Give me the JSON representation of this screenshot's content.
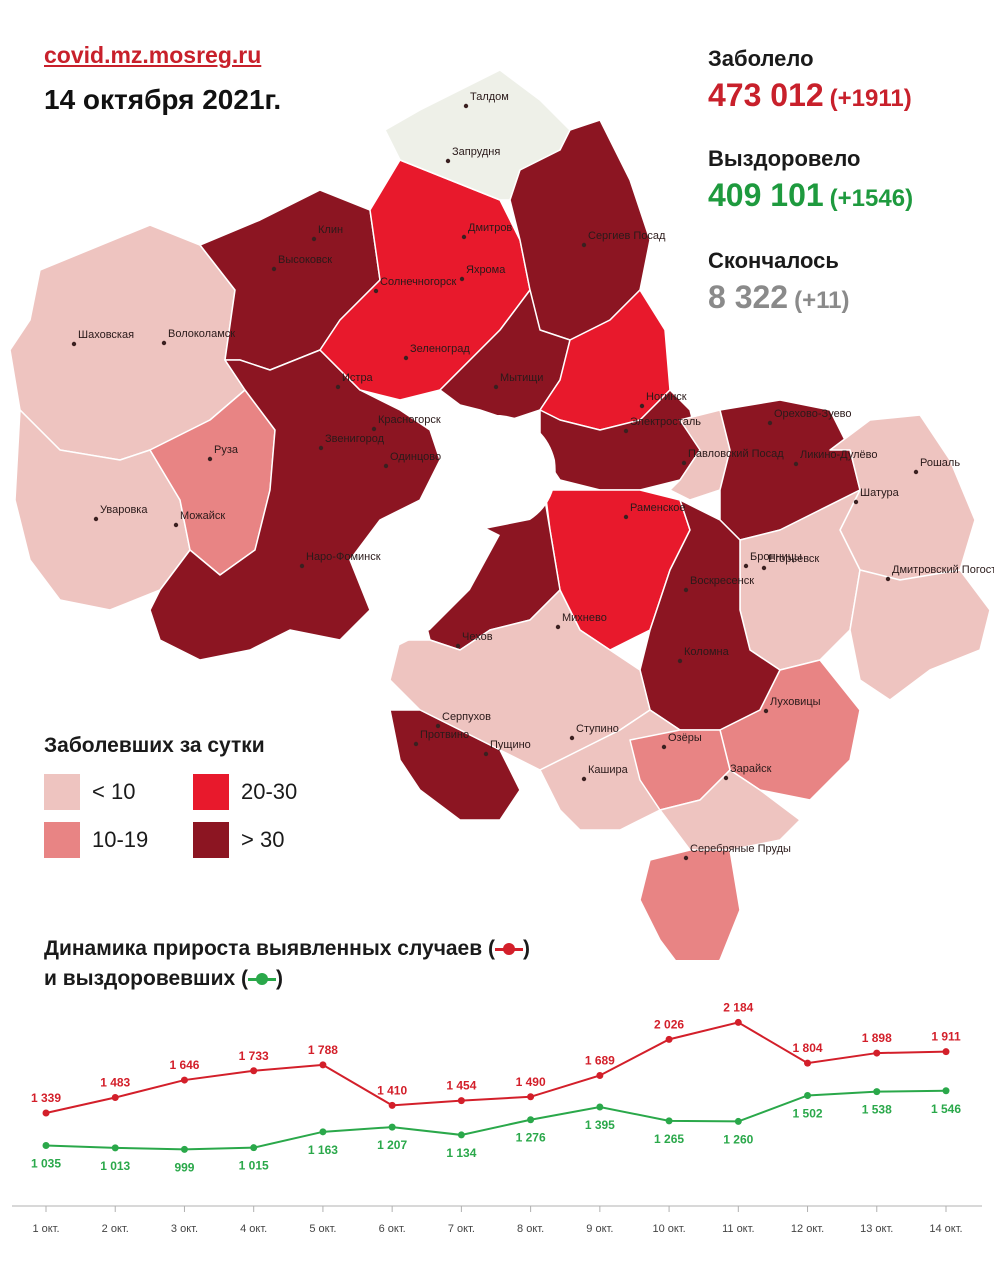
{
  "header": {
    "site": "covid.mz.mosreg.ru",
    "date": "14 октября 2021г."
  },
  "stats": {
    "sick": {
      "label": "Заболело",
      "value": "473 012",
      "delta": "(+1911)",
      "color": "#c8202b"
    },
    "recovered": {
      "label": "Выздоровело",
      "value": "409 101",
      "delta": "(+1546)",
      "color": "#1e9a3e"
    },
    "dead": {
      "label": "Скончалось",
      "value": "8 322",
      "delta": "(+11)",
      "color": "#8a8a8a"
    }
  },
  "map": {
    "towns": [
      "Талдом",
      "Запрудня",
      "Клин",
      "Высоковск",
      "Дмитров",
      "Яхрома",
      "Сергиев Посад",
      "Солнечногорск",
      "Шаховская",
      "Волоколамск",
      "Зеленоград",
      "Истра",
      "Мытищи",
      "Ногинск",
      "Электросталь",
      "Красногорск",
      "Звенигород",
      "Одинцово",
      "Руза",
      "Орехово-Зуево",
      "Павловский Посад",
      "Ликино-Дулёво",
      "Рошаль",
      "Уваровка",
      "Можайск",
      "Раменское",
      "Шатура",
      "Наро-Фоминск",
      "Бронницы",
      "Егорьевск",
      "Дмитровский Погост",
      "Чехов",
      "Михнево",
      "Воскресенск",
      "Коломна",
      "Серпухов",
      "Протвино",
      "Пущино",
      "Ступино",
      "Озёры",
      "Луховицы",
      "Кашира",
      "Зарайск",
      "Серебряные Пруды"
    ],
    "colors": {
      "lt10": "#eec4c0",
      "r10_19": "#e88484",
      "r20_30": "#e8192c",
      "gt30": "#8c1522",
      "none": "#eef0e8"
    }
  },
  "legend": {
    "title": "Заболевших за сутки",
    "items": [
      {
        "label": "< 10",
        "color": "#eec4c0"
      },
      {
        "label": "20-30",
        "color": "#e8192c"
      },
      {
        "label": "10-19",
        "color": "#e88484"
      },
      {
        "label": "> 30",
        "color": "#8c1522"
      }
    ]
  },
  "dynamics": {
    "title_line1": "Динамика прироста выявленных случаев (",
    "title_line1_end": ")",
    "title_line2": "и выздоровевших (",
    "title_line2_end": ")"
  },
  "chart_data": {
    "type": "line",
    "categories": [
      "1 окт.",
      "2 окт.",
      "3 окт.",
      "4 окт.",
      "5 окт.",
      "6 окт.",
      "7 окт.",
      "8 окт.",
      "9 окт.",
      "10 окт.",
      "11 окт.",
      "12 окт.",
      "13 окт.",
      "14 окт."
    ],
    "series": [
      {
        "color": "#d31f2a",
        "values": [
          1339,
          1483,
          1646,
          1733,
          1788,
          1410,
          1454,
          1490,
          1689,
          2026,
          2184,
          1804,
          1898,
          1911
        ],
        "labels": [
          "1 339",
          "1 483",
          "1 646",
          "1 733",
          "1 788",
          "1 410",
          "1 454",
          "1 490",
          "1 689",
          "2 026",
          "2 184",
          "1 804",
          "1 898",
          "1 911"
        ]
      },
      {
        "color": "#2aa84a",
        "values": [
          1035,
          1013,
          999,
          1015,
          1163,
          1207,
          1134,
          1276,
          1395,
          1265,
          1260,
          1502,
          1538,
          1546
        ],
        "labels": [
          "1 035",
          "1 013",
          "999",
          "1 015",
          "1 163",
          "1 207",
          "1 134",
          "1 276",
          "1 395",
          "1 265",
          "1 260",
          "1 502",
          "1 538",
          "1 546"
        ]
      }
    ],
    "grid": false
  }
}
